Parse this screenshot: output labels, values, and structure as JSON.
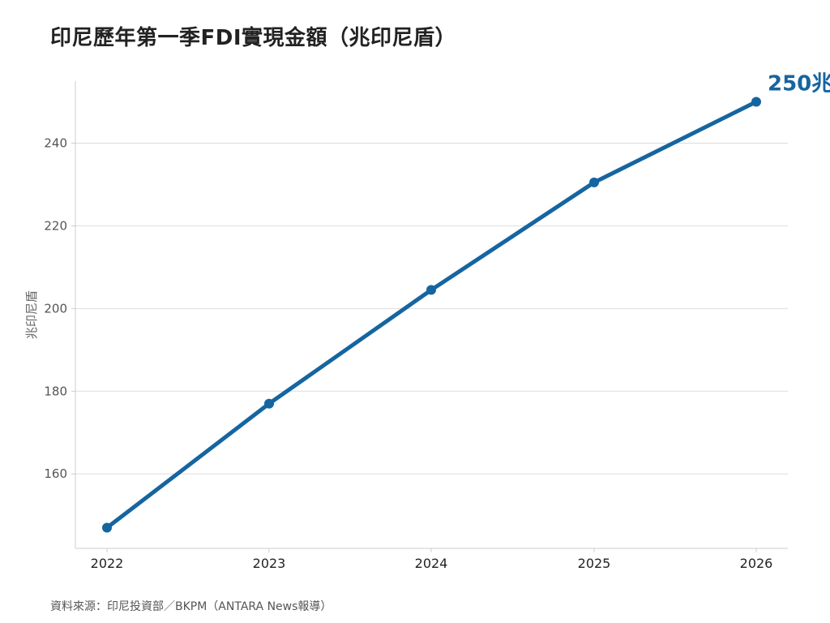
{
  "title": "印尼歷年第一季FDI實現金額（兆印尼盾）",
  "source": "資料來源：印尼投資部／BKPM（ANTARA News報導）",
  "colors": {
    "line": "#1565a0",
    "grid": "#dddddd",
    "axis": "#cccccc"
  },
  "chart_data": {
    "type": "line",
    "x": [
      "2022",
      "2023",
      "2024",
      "2025",
      "2026"
    ],
    "series": [
      {
        "values": [
          147.0,
          177.0,
          204.5,
          230.5,
          250.0
        ]
      }
    ],
    "ylabel": "兆印尼盾",
    "ylim": [
      142,
      255
    ],
    "yticks": [
      "160",
      "180",
      "200",
      "220",
      "240"
    ],
    "grid": true,
    "annotation": {
      "text": "250兆",
      "x": "2026",
      "y": 250
    }
  }
}
